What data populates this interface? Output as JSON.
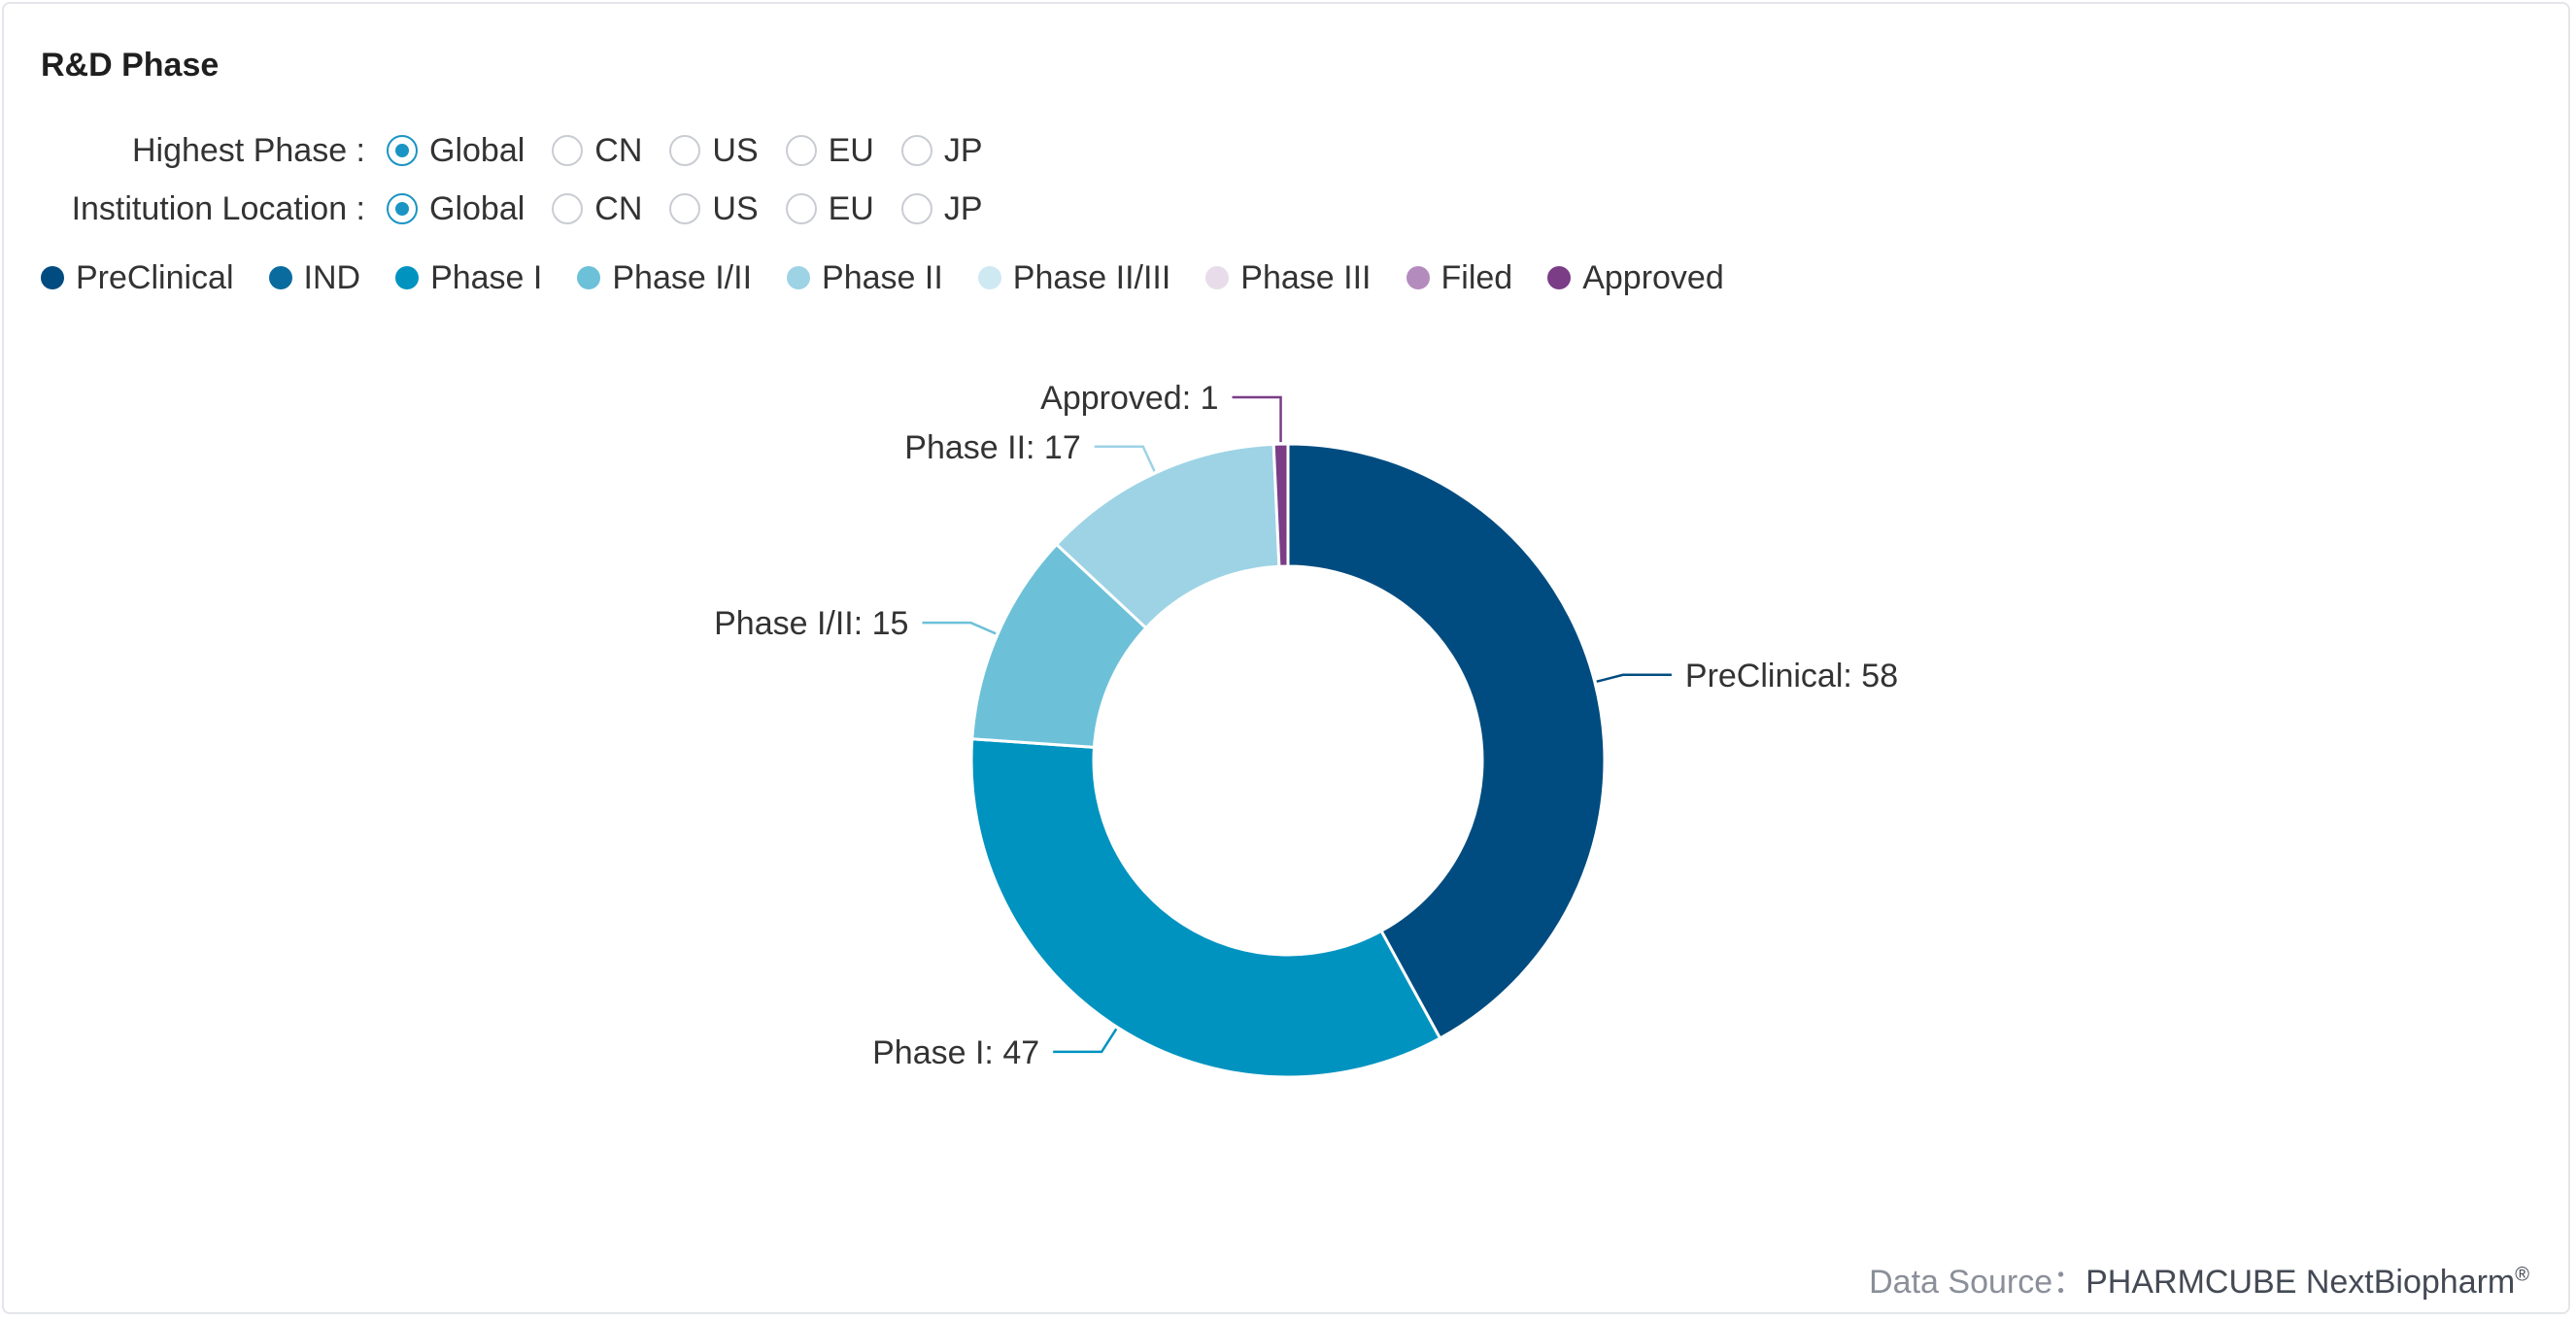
{
  "header": {
    "title": "R&D Phase"
  },
  "filters": [
    {
      "label": "Highest Phase :",
      "options": [
        "Global",
        "CN",
        "US",
        "EU",
        "JP"
      ],
      "selected": 0
    },
    {
      "label": "Institution Location :",
      "options": [
        "Global",
        "CN",
        "US",
        "EU",
        "JP"
      ],
      "selected": 0
    }
  ],
  "legend": [
    {
      "name": "PreClinical",
      "color": "#004c80"
    },
    {
      "name": "IND",
      "color": "#0a6b9e"
    },
    {
      "name": "Phase I",
      "color": "#0093c0"
    },
    {
      "name": "Phase I/II",
      "color": "#6cc1d8"
    },
    {
      "name": "Phase II",
      "color": "#9dd3e5"
    },
    {
      "name": "Phase II/III",
      "color": "#cfe9f3"
    },
    {
      "name": "Phase III",
      "color": "#e8dcea"
    },
    {
      "name": "Filed",
      "color": "#b48bbd"
    },
    {
      "name": "Approved",
      "color": "#7a3d86"
    }
  ],
  "chart_data": {
    "type": "pie",
    "donut": true,
    "categories": [
      "PreClinical",
      "Phase I",
      "Phase I/II",
      "Phase II",
      "Approved"
    ],
    "values": [
      58,
      47,
      15,
      17,
      1
    ],
    "colors": [
      "#004c80",
      "#0093c0",
      "#6cc1d8",
      "#9dd3e5",
      "#7a3d86"
    ],
    "data_labels": [
      "PreClinical: 58",
      "Phase I: 47",
      "Phase I/II: 15",
      "Phase II: 17",
      "Approved: 1"
    ],
    "legend_position": "top-left"
  },
  "footer": {
    "prefix": "Data Source：",
    "brand": "PHARMCUBE NextBiopharm",
    "mark": "®"
  }
}
